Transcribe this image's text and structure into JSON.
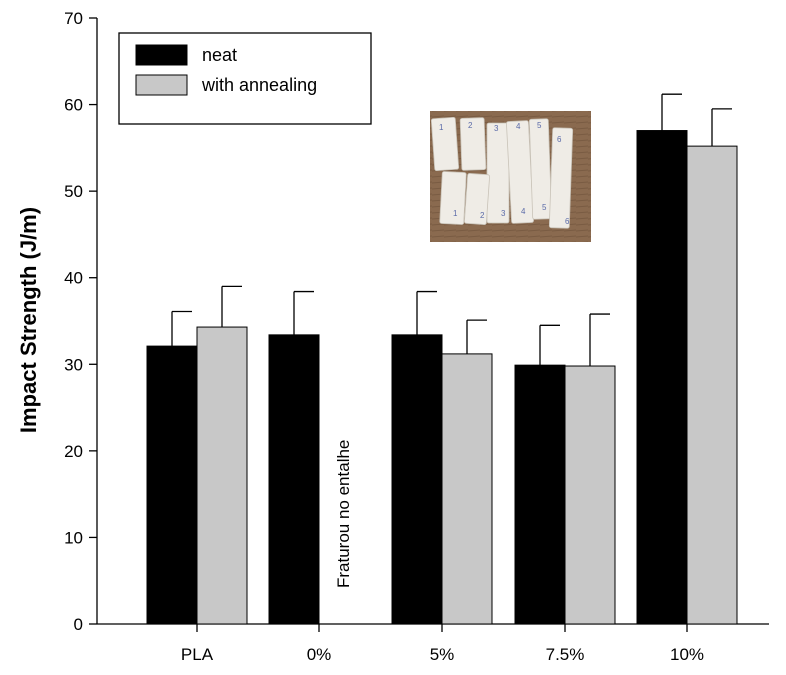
{
  "chart_data": {
    "type": "bar",
    "title": "",
    "xlabel": "",
    "ylabel": "Impact Strength (J/m)",
    "ylim": [
      0,
      70
    ],
    "yticks": [
      0,
      10,
      20,
      30,
      40,
      50,
      60,
      70
    ],
    "categories": [
      "PLA",
      "0%",
      "5%",
      "7.5%",
      "10%"
    ],
    "series": [
      {
        "name": "neat",
        "color": "#000000",
        "values": [
          32.1,
          33.4,
          33.4,
          29.9,
          57.0
        ],
        "errors": [
          4.0,
          5.0,
          5.0,
          4.6,
          4.2
        ]
      },
      {
        "name": "with annealing",
        "color": "#c8c8c8",
        "values": [
          34.3,
          null,
          31.2,
          29.8,
          55.2
        ],
        "errors": [
          4.7,
          null,
          3.9,
          6.0,
          4.3
        ]
      }
    ],
    "legend": {
      "position": "top-left"
    },
    "annotations": [
      {
        "text": "Fraturou no entalhe",
        "category": "0%",
        "series": "with annealing"
      }
    ],
    "inset_photo": {
      "description": "photo of fractured specimens",
      "labels": [
        "1",
        "2",
        "3",
        "4",
        "5",
        "6"
      ]
    }
  }
}
